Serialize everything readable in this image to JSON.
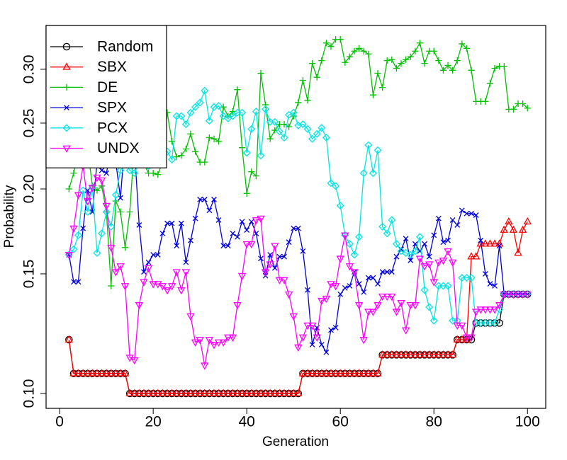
{
  "chart_data": {
    "type": "line",
    "x_label": "Generation",
    "y_label": "Probability",
    "x": [
      2,
      3,
      4,
      5,
      6,
      7,
      8,
      9,
      10,
      11,
      12,
      13,
      14,
      15,
      16,
      17,
      18,
      19,
      20,
      21,
      22,
      23,
      24,
      25,
      26,
      27,
      28,
      29,
      30,
      31,
      32,
      33,
      34,
      35,
      36,
      37,
      38,
      39,
      40,
      41,
      42,
      43,
      44,
      45,
      46,
      47,
      48,
      49,
      50,
      51,
      52,
      53,
      54,
      55,
      56,
      57,
      58,
      59,
      60,
      61,
      62,
      63,
      64,
      65,
      66,
      67,
      68,
      69,
      70,
      71,
      72,
      73,
      74,
      75,
      76,
      77,
      78,
      79,
      80,
      81,
      82,
      83,
      84,
      85,
      86,
      87,
      88,
      89,
      90,
      91,
      92,
      93,
      94,
      95,
      96,
      97,
      98,
      99,
      100
    ],
    "series": [
      {
        "name": "Random",
        "color": "#000000",
        "marker": "circle",
        "values": [
          0.12,
          0.107,
          0.107,
          0.107,
          0.107,
          0.107,
          0.107,
          0.107,
          0.107,
          0.107,
          0.107,
          0.107,
          0.107,
          0.1,
          0.1,
          0.1,
          0.1,
          0.1,
          0.1,
          0.1,
          0.1,
          0.1,
          0.1,
          0.1,
          0.1,
          0.1,
          0.1,
          0.1,
          0.1,
          0.1,
          0.1,
          0.1,
          0.1,
          0.1,
          0.1,
          0.1,
          0.1,
          0.1,
          0.1,
          0.1,
          0.1,
          0.1,
          0.1,
          0.1,
          0.1,
          0.1,
          0.1,
          0.1,
          0.1,
          0.1,
          0.107,
          0.107,
          0.107,
          0.107,
          0.107,
          0.107,
          0.107,
          0.107,
          0.107,
          0.107,
          0.107,
          0.107,
          0.107,
          0.107,
          0.107,
          0.107,
          0.107,
          0.114,
          0.114,
          0.114,
          0.114,
          0.114,
          0.114,
          0.114,
          0.114,
          0.114,
          0.114,
          0.114,
          0.114,
          0.114,
          0.114,
          0.114,
          0.114,
          0.12,
          0.12,
          0.12,
          0.12,
          0.127,
          0.127,
          0.127,
          0.127,
          0.127,
          0.127,
          0.14,
          0.14,
          0.14,
          0.14,
          0.14,
          0.14
        ]
      },
      {
        "name": "SBX",
        "color": "#ff0000",
        "marker": "triangle",
        "values": [
          0.12,
          0.107,
          0.107,
          0.107,
          0.107,
          0.107,
          0.107,
          0.107,
          0.107,
          0.107,
          0.107,
          0.107,
          0.107,
          0.1,
          0.1,
          0.1,
          0.1,
          0.1,
          0.1,
          0.1,
          0.1,
          0.1,
          0.1,
          0.1,
          0.1,
          0.1,
          0.1,
          0.1,
          0.1,
          0.1,
          0.1,
          0.1,
          0.1,
          0.1,
          0.1,
          0.1,
          0.1,
          0.1,
          0.1,
          0.1,
          0.1,
          0.1,
          0.1,
          0.1,
          0.1,
          0.1,
          0.1,
          0.1,
          0.1,
          0.1,
          0.107,
          0.107,
          0.107,
          0.107,
          0.107,
          0.107,
          0.107,
          0.107,
          0.107,
          0.107,
          0.107,
          0.107,
          0.107,
          0.107,
          0.107,
          0.107,
          0.107,
          0.114,
          0.114,
          0.114,
          0.114,
          0.114,
          0.114,
          0.114,
          0.114,
          0.114,
          0.114,
          0.114,
          0.114,
          0.114,
          0.114,
          0.114,
          0.114,
          0.12,
          0.12,
          0.12,
          0.159,
          0.159,
          0.166,
          0.166,
          0.166,
          0.166,
          0.166,
          0.174,
          0.179,
          0.174,
          0.161,
          0.174,
          0.179
        ]
      },
      {
        "name": "DE",
        "color": "#00c000",
        "marker": "plus",
        "values": [
          0.2,
          0.211,
          0.228,
          0.219,
          0.229,
          0.202,
          0.199,
          0.202,
          0.185,
          0.144,
          0.192,
          0.185,
          0.164,
          0.185,
          0.235,
          0.224,
          0.218,
          0.211,
          0.211,
          0.21,
          0.219,
          0.259,
          0.235,
          0.223,
          0.224,
          0.229,
          0.241,
          0.227,
          0.219,
          0.219,
          0.238,
          0.237,
          0.235,
          0.264,
          0.256,
          0.26,
          0.28,
          0.23,
          0.197,
          0.212,
          0.209,
          0.296,
          0.266,
          0.237,
          0.244,
          0.249,
          0.249,
          0.247,
          0.256,
          0.268,
          0.289,
          0.27,
          0.306,
          0.292,
          0.309,
          0.328,
          0.324,
          0.332,
          0.332,
          0.307,
          0.313,
          0.319,
          0.322,
          0.319,
          0.316,
          0.275,
          0.296,
          0.282,
          0.309,
          0.31,
          0.301,
          0.306,
          0.31,
          0.313,
          0.319,
          0.328,
          0.306,
          0.319,
          0.319,
          0.309,
          0.299,
          0.304,
          0.299,
          0.309,
          0.327,
          0.322,
          0.299,
          0.269,
          0.269,
          0.269,
          0.286,
          0.301,
          0.303,
          0.303,
          0.262,
          0.262,
          0.267,
          0.267,
          0.263
        ]
      },
      {
        "name": "SPX",
        "color": "#0000dd",
        "marker": "cross",
        "values": [
          0.16,
          0.146,
          0.146,
          0.175,
          0.199,
          0.185,
          0.219,
          0.213,
          0.211,
          0.229,
          0.219,
          0.194,
          0.238,
          0.229,
          0.229,
          0.177,
          0.151,
          0.156,
          0.16,
          0.16,
          0.172,
          0.178,
          0.178,
          0.165,
          0.178,
          0.156,
          0.168,
          0.181,
          0.193,
          0.193,
          0.186,
          0.193,
          0.18,
          0.165,
          0.165,
          0.172,
          0.17,
          0.179,
          0.174,
          0.179,
          0.172,
          0.158,
          0.149,
          0.16,
          0.153,
          0.159,
          0.159,
          0.167,
          0.175,
          0.175,
          0.162,
          0.142,
          0.118,
          0.125,
          0.118,
          0.115,
          0.124,
          0.125,
          0.14,
          0.143,
          0.144,
          0.151,
          0.145,
          0.141,
          0.148,
          0.148,
          0.145,
          0.151,
          0.151,
          0.151,
          0.159,
          0.163,
          0.169,
          0.157,
          0.166,
          0.162,
          0.166,
          0.159,
          0.171,
          0.181,
          0.167,
          0.168,
          0.18,
          0.177,
          0.186,
          0.184,
          0.184,
          0.183,
          0.168,
          0.15,
          0.145,
          0.144,
          0.165,
          0.14,
          0.14,
          0.14,
          0.14,
          0.14,
          0.14
        ]
      },
      {
        "name": "PCX",
        "color": "#00e5e5",
        "marker": "diamond",
        "values": [
          0.16,
          0.163,
          0.171,
          0.199,
          0.185,
          0.201,
          0.161,
          0.172,
          0.185,
          0.176,
          0.196,
          0.213,
          0.219,
          0.213,
          0.211,
          0.219,
          0.238,
          0.216,
          0.227,
          0.219,
          0.227,
          0.227,
          0.221,
          0.256,
          0.256,
          0.249,
          0.259,
          0.264,
          0.268,
          0.279,
          0.252,
          0.264,
          0.265,
          0.256,
          0.254,
          0.256,
          0.259,
          0.259,
          0.226,
          0.245,
          0.26,
          0.224,
          0.262,
          0.251,
          0.251,
          0.243,
          0.238,
          0.257,
          0.259,
          0.248,
          0.249,
          0.245,
          0.237,
          0.241,
          0.246,
          0.238,
          0.204,
          0.202,
          0.189,
          0.171,
          0.166,
          0.16,
          0.17,
          0.211,
          0.232,
          0.211,
          0.228,
          0.176,
          0.172,
          0.18,
          0.166,
          0.162,
          0.161,
          0.16,
          0.162,
          0.17,
          0.142,
          0.134,
          0.128,
          0.144,
          0.144,
          0.144,
          0.128,
          0.128,
          0.148,
          0.148,
          0.148,
          0.127,
          0.127,
          0.127,
          0.127,
          0.127,
          0.133,
          0.14,
          0.14,
          0.14,
          0.14,
          0.14,
          0.14
        ]
      },
      {
        "name": "UNDX",
        "color": "#ff00ff",
        "marker": "triangle-down",
        "values": [
          0.16,
          0.175,
          0.196,
          0.216,
          0.192,
          0.201,
          0.208,
          0.206,
          0.189,
          0.164,
          0.151,
          0.154,
          0.144,
          0.113,
          0.112,
          0.135,
          0.146,
          0.153,
          0.145,
          0.145,
          0.144,
          0.142,
          0.144,
          0.151,
          0.142,
          0.151,
          0.13,
          0.119,
          0.12,
          0.11,
          0.12,
          0.118,
          0.119,
          0.119,
          0.121,
          0.121,
          0.135,
          0.149,
          0.166,
          0.166,
          0.18,
          0.181,
          0.151,
          0.155,
          0.165,
          0.147,
          0.147,
          0.14,
          0.13,
          0.117,
          0.121,
          0.126,
          0.126,
          0.121,
          0.137,
          0.138,
          0.145,
          0.144,
          0.158,
          0.171,
          0.154,
          0.151,
          0.135,
          0.12,
          0.132,
          0.132,
          0.135,
          0.139,
          0.139,
          0.139,
          0.132,
          0.136,
          0.124,
          0.135,
          0.135,
          0.158,
          0.154,
          0.155,
          0.146,
          0.156,
          0.157,
          0.162,
          0.156,
          0.126,
          0.126,
          0.121,
          0.121,
          0.132,
          0.133,
          0.133,
          0.133,
          0.133,
          0.135,
          0.14,
          0.14,
          0.14,
          0.14,
          0.14,
          0.14
        ]
      }
    ],
    "xlim": [
      -2.9,
      103.9
    ],
    "xticks": [
      0,
      20,
      40,
      60,
      80,
      100
    ],
    "ylim": [
      0.0951,
      0.348
    ],
    "y_log": true,
    "yticks": [
      {
        "value": 0.1,
        "label": "0.10"
      },
      0.15,
      {
        "value": 0.2,
        "label": "0.20"
      },
      0.25,
      {
        "value": 0.3,
        "label": "0.30"
      }
    ],
    "legend": "top-left"
  }
}
